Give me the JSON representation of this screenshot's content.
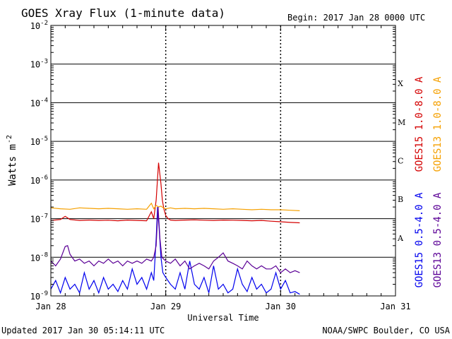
{
  "header": {
    "title": "GOES Xray Flux (1-minute data)",
    "begin": "Begin:  2017 Jan 28 0000 UTC"
  },
  "footer": {
    "updated": "Updated 2017 Jan 30 05:14:11 UTC",
    "credit": "NOAA/SWPC Boulder, CO USA"
  },
  "chart_data": {
    "type": "line",
    "title": "GOES Xray Flux (1-minute data)",
    "xlabel": "Universal Time",
    "ylabel": "Watts m",
    "ylabel_superscript": "-2",
    "yscale": "log",
    "ylim": [
      1e-09,
      0.01
    ],
    "xlim": [
      0,
      72
    ],
    "x_unit": "hours since 2017 Jan 28 0000 UTC",
    "x_ticks": [
      {
        "x": 0,
        "label": "Jan 28"
      },
      {
        "x": 24,
        "label": "Jan 29"
      },
      {
        "x": 48,
        "label": "Jan 30"
      },
      {
        "x": 72,
        "label": "Jan 31"
      }
    ],
    "y_ticks": [
      {
        "exp": -2,
        "base": "10",
        "sup": "-2"
      },
      {
        "exp": -3,
        "base": "10",
        "sup": "-3"
      },
      {
        "exp": -4,
        "base": "10",
        "sup": "-4"
      },
      {
        "exp": -5,
        "base": "10",
        "sup": "-5"
      },
      {
        "exp": -6,
        "base": "10",
        "sup": "-6"
      },
      {
        "exp": -7,
        "base": "10",
        "sup": "-7"
      },
      {
        "exp": -8,
        "base": "10",
        "sup": "-8"
      },
      {
        "exp": -9,
        "base": "10",
        "sup": "-9"
      }
    ],
    "flare_classes": [
      {
        "label": "X",
        "exp": -4
      },
      {
        "label": "M",
        "exp": -5
      },
      {
        "label": "C",
        "exp": -6
      },
      {
        "label": "B",
        "exp": -7
      },
      {
        "label": "A",
        "exp": -8
      }
    ],
    "grid": true,
    "legend": "right, vertical",
    "series": [
      {
        "name": "GOES15 1.0-8.0 A",
        "color": "#d40000",
        "x": [
          0,
          2,
          3,
          4,
          6,
          8,
          10,
          12,
          14,
          16,
          18,
          20,
          21,
          21.5,
          22,
          22.5,
          23,
          23.3,
          23.6,
          24,
          24.5,
          25,
          26,
          28,
          30,
          32,
          34,
          36,
          38,
          40,
          42,
          44,
          46,
          48,
          50,
          52
        ],
        "y": [
          9e-08,
          9.5e-08,
          1.15e-07,
          9.5e-08,
          9e-08,
          9.2e-08,
          9e-08,
          9.1e-08,
          8.8e-08,
          9.2e-08,
          9e-08,
          8.8e-08,
          1.5e-07,
          1e-07,
          3e-07,
          2.8e-06,
          8e-07,
          3e-07,
          1.8e-07,
          1.2e-07,
          1e-07,
          9.2e-08,
          9e-08,
          9.2e-08,
          9.3e-08,
          9.1e-08,
          9e-08,
          9.2e-08,
          9.1e-08,
          9e-08,
          8.8e-08,
          9e-08,
          8.6e-08,
          8.3e-08,
          8e-08,
          7.8e-08
        ]
      },
      {
        "name": "GOES13 1.0-8.0 A",
        "color": "#f5a000",
        "x": [
          0,
          2,
          4,
          6,
          8,
          10,
          12,
          14,
          16,
          18,
          20,
          21,
          21.5,
          22,
          22.5,
          23,
          23.5,
          24,
          25,
          26,
          28,
          30,
          32,
          34,
          36,
          38,
          40,
          42,
          44,
          46,
          48,
          50,
          52
        ],
        "y": [
          1.9e-07,
          1.8e-07,
          1.75e-07,
          1.9e-07,
          1.85e-07,
          1.8e-07,
          1.85e-07,
          1.8e-07,
          1.75e-07,
          1.8e-07,
          1.75e-07,
          2.5e-07,
          1.8e-07,
          2.2e-07,
          2e-07,
          2.1e-07,
          1.9e-07,
          1.8e-07,
          1.9e-07,
          1.8e-07,
          1.85e-07,
          1.8e-07,
          1.85e-07,
          1.8e-07,
          1.75e-07,
          1.8e-07,
          1.75e-07,
          1.7e-07,
          1.75e-07,
          1.7e-07,
          1.7e-07,
          1.65e-07,
          1.6e-07
        ]
      },
      {
        "name": "GOES15 0.5-4.0 A",
        "color": "#0000ee",
        "x": [
          0,
          1,
          2,
          3,
          4,
          5,
          6,
          7,
          8,
          9,
          10,
          11,
          12,
          13,
          14,
          15,
          16,
          17,
          18,
          19,
          20,
          21,
          21.5,
          22,
          22.3,
          22.6,
          23,
          23.4,
          24,
          25,
          26,
          27,
          28,
          29,
          30,
          31,
          32,
          33,
          34,
          35,
          36,
          37,
          38,
          39,
          40,
          41,
          42,
          43,
          44,
          45,
          46,
          47,
          48,
          49,
          50,
          51,
          52
        ],
        "y": [
          1.5e-09,
          2.5e-09,
          1.2e-09,
          3e-09,
          1.5e-09,
          2e-09,
          1.2e-09,
          4e-09,
          1.5e-09,
          2.5e-09,
          1.2e-09,
          3e-09,
          1.5e-09,
          2e-09,
          1.3e-09,
          2.5e-09,
          1.5e-09,
          5e-09,
          2e-09,
          3e-09,
          1.5e-09,
          4e-09,
          2.5e-09,
          3e-08,
          2e-07,
          6e-08,
          1e-08,
          4e-09,
          3e-09,
          2e-09,
          1.5e-09,
          4e-09,
          1.5e-09,
          8e-09,
          2e-09,
          1.5e-09,
          3e-09,
          1.2e-09,
          6e-09,
          1.5e-09,
          2e-09,
          1.2e-09,
          1.5e-09,
          5e-09,
          2e-09,
          1.3e-09,
          3e-09,
          1.5e-09,
          2e-09,
          1.2e-09,
          1.5e-09,
          4e-09,
          1.5e-09,
          2.5e-09,
          1.2e-09,
          1.3e-09,
          1.1e-09
        ]
      },
      {
        "name": "GOES13 0.5-4.0 A",
        "color": "#5b0096",
        "x": [
          0,
          1,
          2,
          3,
          3.5,
          4,
          5,
          6,
          7,
          8,
          9,
          10,
          11,
          12,
          13,
          14,
          15,
          16,
          17,
          18,
          19,
          20,
          21,
          21.5,
          22,
          22.4,
          22.8,
          23.2,
          24,
          25,
          26,
          27,
          28,
          29,
          30,
          31,
          32,
          33,
          34,
          35,
          36,
          37,
          38,
          39,
          40,
          41,
          42,
          43,
          44,
          45,
          46,
          47,
          48,
          49,
          50,
          51,
          52
        ],
        "y": [
          8e-09,
          6e-09,
          9e-09,
          1.9e-08,
          2e-08,
          1.2e-08,
          8e-09,
          9e-09,
          7e-09,
          8e-09,
          6e-09,
          8e-09,
          7e-09,
          9e-09,
          7e-09,
          8e-09,
          6e-09,
          8e-09,
          7e-09,
          8e-09,
          7e-09,
          9e-09,
          8e-09,
          1e-08,
          2e-08,
          2e-07,
          3e-08,
          1e-08,
          8e-09,
          7e-09,
          9e-09,
          6e-09,
          8e-09,
          5e-09,
          6e-09,
          7e-09,
          6e-09,
          5e-09,
          8e-09,
          1e-08,
          1.3e-08,
          8e-09,
          7e-09,
          6e-09,
          5e-09,
          8e-09,
          6e-09,
          5e-09,
          6e-09,
          5e-09,
          5e-09,
          6e-09,
          4e-09,
          5e-09,
          4e-09,
          4.5e-09,
          4e-09
        ]
      }
    ]
  }
}
